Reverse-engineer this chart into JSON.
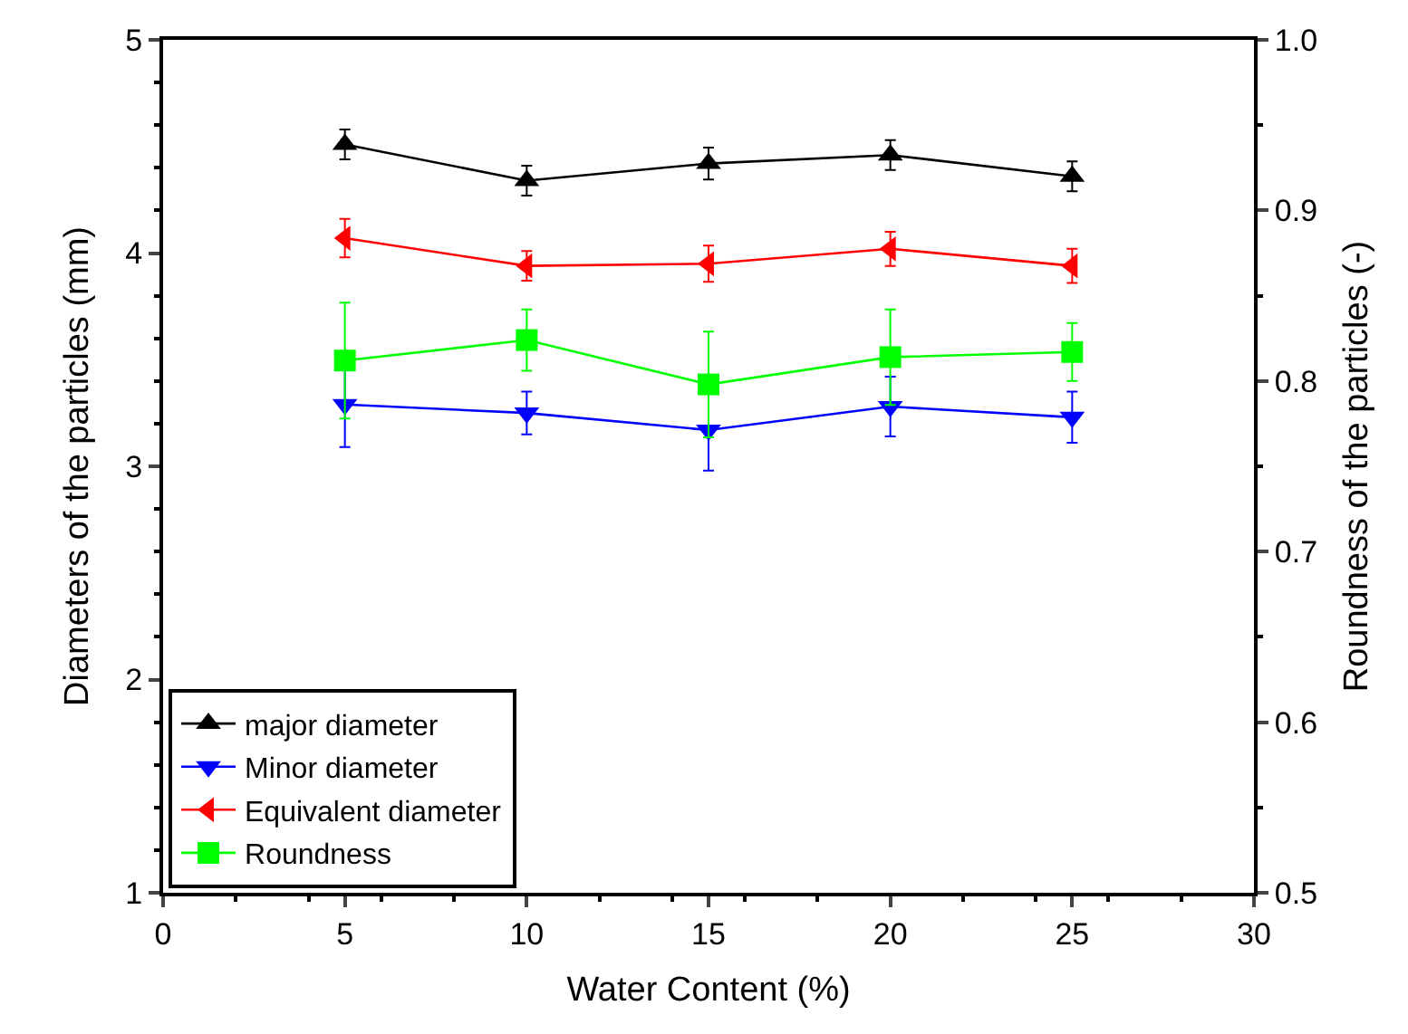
{
  "chart_data": {
    "type": "line",
    "xlabel": "Water Content (%)",
    "ylabel": "Diameters of the particles (mm)",
    "y2label": "Roundness of the particles (-)",
    "x": [
      5,
      10,
      15,
      20,
      25
    ],
    "series": [
      {
        "name": "major diameter",
        "color": "#000000",
        "marker": "triangle-up",
        "values": [
          4.51,
          4.34,
          4.42,
          4.46,
          4.36
        ],
        "errors": [
          0.07,
          0.07,
          0.075,
          0.07,
          0.07
        ]
      },
      {
        "name": "Minor diameter",
        "color": "#0000ff",
        "marker": "triangle-down",
        "values": [
          3.29,
          3.25,
          3.17,
          3.28,
          3.23
        ],
        "errors": [
          0.2,
          0.1,
          0.19,
          0.14,
          0.12
        ]
      },
      {
        "name": "Equivalent diameter",
        "color": "#ff0000",
        "marker": "triangle-left",
        "values": [
          4.07,
          3.94,
          3.95,
          4.02,
          3.94
        ],
        "errors": [
          0.09,
          0.07,
          0.085,
          0.08,
          0.08
        ]
      },
      {
        "name": "Roundness",
        "color": "#00ff00",
        "marker": "square",
        "axis": "y2",
        "values": [
          0.812,
          0.824,
          0.798,
          0.814,
          0.817
        ],
        "errors": [
          0.034,
          0.018,
          0.031,
          0.028,
          0.017
        ]
      }
    ],
    "xlim": [
      0,
      30
    ],
    "xticks": [
      0,
      5,
      10,
      15,
      20,
      25,
      30
    ],
    "ylim": [
      1,
      5
    ],
    "yticks": [
      1,
      2,
      3,
      4,
      5
    ],
    "y2lim": [
      0.5,
      1.0
    ],
    "y2ticks": [
      {
        "value": 0.5,
        "label": "0.5"
      },
      {
        "value": 0.6,
        "label": "0.6"
      },
      {
        "value": 0.7,
        "label": "0.7"
      },
      {
        "value": 0.8,
        "label": "0.8"
      },
      {
        "value": 0.9,
        "label": "0.9"
      },
      {
        "value": 1.0,
        "label": "1.0"
      }
    ],
    "legend": "bottom left",
    "line_style": "solid"
  }
}
